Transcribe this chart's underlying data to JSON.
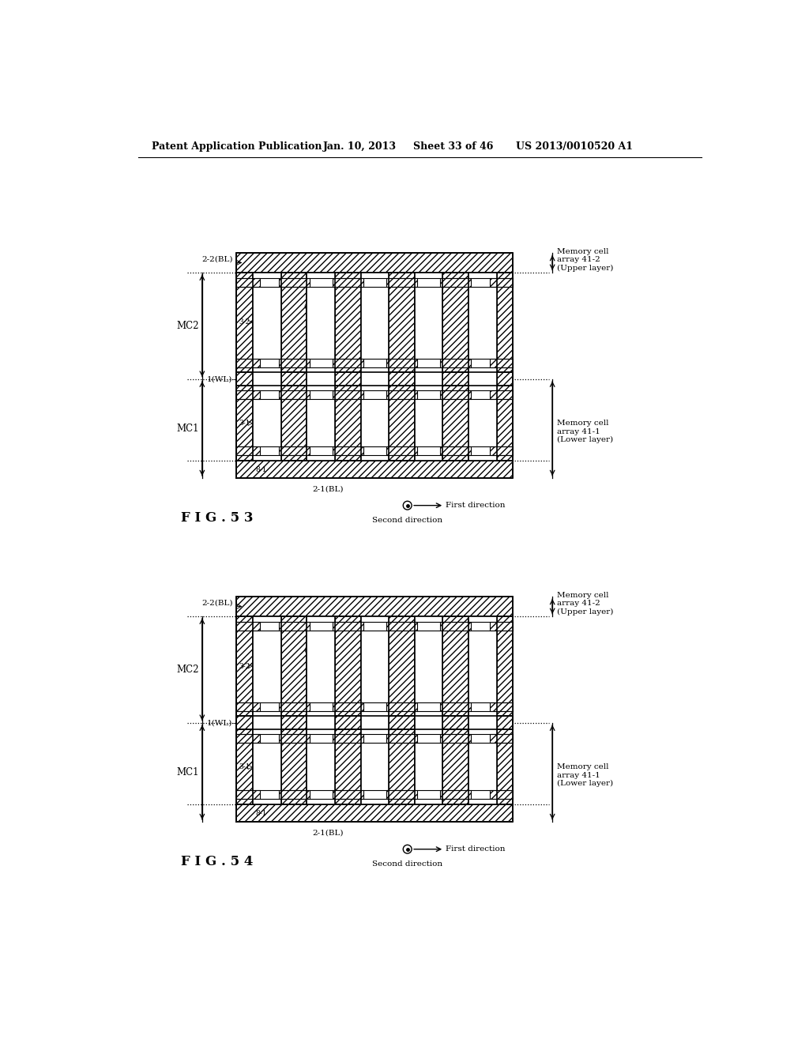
{
  "bg_color": "#ffffff",
  "header_text": "Patent Application Publication",
  "header_date": "Jan. 10, 2013",
  "header_sheet": "Sheet 33 of 46",
  "header_patent": "US 2013/0010520 A1",
  "fig53_label": "F I G . 5 3",
  "fig54_label": "F I G . 5 4",
  "line_color": "#000000"
}
